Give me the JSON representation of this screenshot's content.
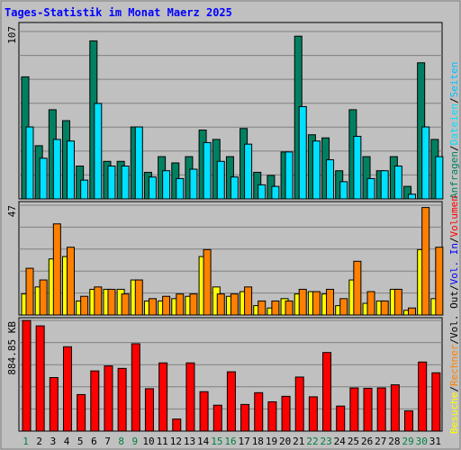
{
  "title": "Tages-Statistik im Monat Maerz 2025",
  "colors": {
    "background": "#c0c0c0",
    "panel": "#c0c0c0",
    "title": "#0000ff",
    "anfragen": "#008060",
    "dateien": "#00e0ff",
    "seiten": "#00c0ff",
    "besuche": "#ffff00",
    "rechner": "#ff8000",
    "volumen": "#ff0000",
    "weekday_label": "#000000",
    "weekend_label": "#008040"
  },
  "chart_data": [
    {
      "type": "bar",
      "panel": "top",
      "ymax_label": "107",
      "ylim": [
        0,
        107
      ],
      "x": [
        "1",
        "2",
        "3",
        "4",
        "5",
        "6",
        "7",
        "8",
        "9",
        "10",
        "11",
        "12",
        "13",
        "14",
        "15",
        "16",
        "17",
        "18",
        "19",
        "20",
        "21",
        "22",
        "23",
        "24",
        "25",
        "26",
        "27",
        "28",
        "29",
        "30",
        "31"
      ],
      "series": [
        {
          "name": "Anfragen",
          "color_key": "anfragen",
          "values": [
            78,
            34,
            57,
            50,
            21,
            101,
            24,
            24,
            46,
            17,
            27,
            23,
            27,
            44,
            38,
            27,
            45,
            17,
            15,
            30,
            104,
            41,
            39,
            18,
            57,
            27,
            18,
            27,
            8,
            87,
            38
          ]
        },
        {
          "name": "Dateien",
          "color_key": "dateien",
          "values": [
            46,
            26,
            38,
            37,
            12,
            61,
            21,
            21,
            46,
            14,
            18,
            13,
            19,
            36,
            24,
            14,
            35,
            9,
            8,
            30,
            59,
            37,
            25,
            11,
            40,
            13,
            18,
            21,
            3,
            46,
            27
          ]
        }
      ],
      "legend_vertical": [
        {
          "text": "Anfragen",
          "color_key": "anfragen"
        },
        {
          "text": "/",
          "color_key": "weekday_label"
        },
        {
          "text": "Dateien",
          "color_key": "dateien"
        },
        {
          "text": "/",
          "color_key": "weekday_label"
        },
        {
          "text": "Seiten",
          "color_key": "seiten"
        }
      ]
    },
    {
      "type": "bar",
      "panel": "middle",
      "ymax_label": "47",
      "ylim": [
        0,
        47
      ],
      "x": [
        "1",
        "2",
        "3",
        "4",
        "5",
        "6",
        "7",
        "8",
        "9",
        "10",
        "11",
        "12",
        "13",
        "14",
        "15",
        "16",
        "17",
        "18",
        "19",
        "20",
        "21",
        "22",
        "23",
        "24",
        "25",
        "26",
        "27",
        "28",
        "29",
        "30",
        "31"
      ],
      "series": [
        {
          "name": "Besuche",
          "color_key": "besuche",
          "values": [
            9,
            12,
            24,
            25,
            6,
            11,
            11,
            11,
            15,
            6,
            6,
            7,
            8,
            25,
            12,
            8,
            10,
            4,
            3,
            7,
            9,
            10,
            9,
            4,
            15,
            5,
            6,
            11,
            2,
            28,
            7
          ]
        },
        {
          "name": "Rechner",
          "color_key": "rechner",
          "values": [
            20,
            15,
            39,
            29,
            8,
            12,
            11,
            9,
            15,
            7,
            8,
            9,
            9,
            28,
            9,
            9,
            12,
            6,
            6,
            6,
            11,
            10,
            11,
            7,
            23,
            10,
            6,
            11,
            3,
            46,
            29
          ]
        }
      ],
      "legend_vertical": [
        {
          "text": "Besuche",
          "color_key": "besuche"
        },
        {
          "text": "/",
          "color_key": "weekday_label"
        },
        {
          "text": "Rechner",
          "color_key": "rechner"
        },
        {
          "text": "/",
          "color_key": "weekday_label"
        },
        {
          "text": "Vol. Out",
          "color_key": "weekday_label"
        },
        {
          "text": "/",
          "color_key": "weekday_label"
        },
        {
          "text": "Vol. In",
          "color_key": "title"
        },
        {
          "text": "/",
          "color_key": "weekday_label"
        },
        {
          "text": "Volumen",
          "color_key": "volumen"
        }
      ]
    },
    {
      "type": "bar",
      "panel": "bottom",
      "ymax_label": "884.85 KB",
      "ylim": [
        0,
        884.85
      ],
      "x": [
        "1",
        "2",
        "3",
        "4",
        "5",
        "6",
        "7",
        "8",
        "9",
        "10",
        "11",
        "12",
        "13",
        "14",
        "15",
        "16",
        "17",
        "18",
        "19",
        "20",
        "21",
        "22",
        "23",
        "24",
        "25",
        "26",
        "27",
        "28",
        "29",
        "30",
        "31"
      ],
      "series": [
        {
          "name": "Volumen",
          "color_key": "volumen",
          "values": [
            884,
            841,
            428,
            674,
            292,
            481,
            521,
            501,
            698,
            339,
            545,
            96,
            545,
            315,
            207,
            474,
            213,
            307,
            234,
            278,
            432,
            274,
            628,
            200,
            345,
            342,
            345,
            370,
            162,
            552,
            466
          ]
        }
      ],
      "weekend_days": [
        "1",
        "8",
        "9",
        "15",
        "16",
        "22",
        "23",
        "29",
        "30"
      ]
    }
  ]
}
